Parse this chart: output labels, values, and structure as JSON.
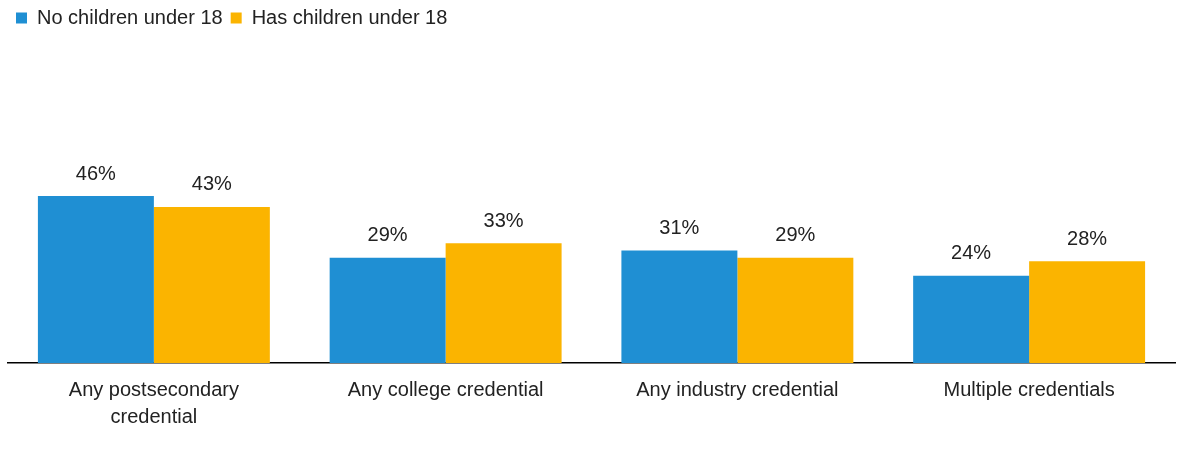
{
  "chart_data": {
    "type": "bar",
    "categories": [
      "Any postsecondary credential",
      "Any college credential",
      "Any industry credential",
      "Multiple credentials"
    ],
    "series": [
      {
        "name": "No children under 18",
        "color": "#1f8fd3",
        "values": [
          46,
          29,
          31,
          24
        ],
        "value_labels": [
          "46%",
          "29%",
          "31%",
          "24%"
        ]
      },
      {
        "name": "Has children under 18",
        "color": "#fbb400",
        "values": [
          43,
          33,
          29,
          28
        ],
        "value_labels": [
          "43%",
          "33%",
          "29%",
          "28%"
        ]
      }
    ],
    "legend": "top left",
    "grid": false
  }
}
